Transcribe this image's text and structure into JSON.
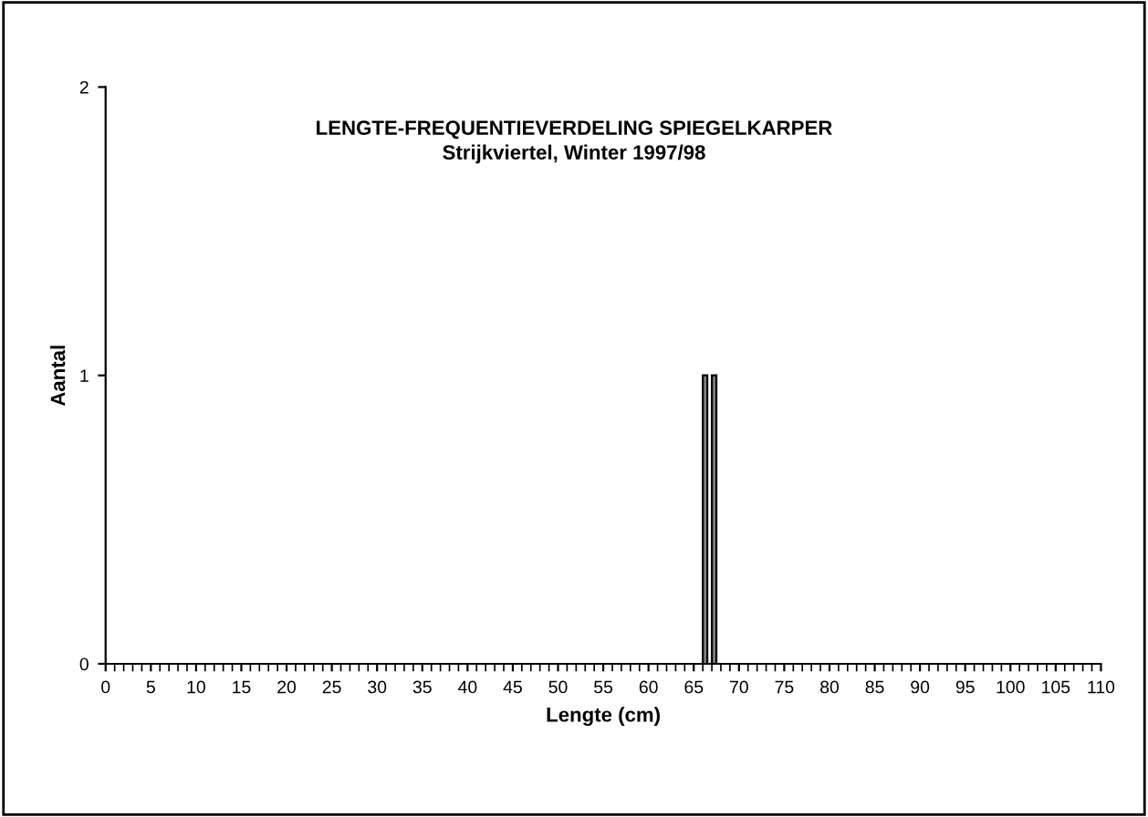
{
  "chart_data": {
    "type": "bar",
    "title": "LENGTE-FREQUENTIEVERDELING SPIEGELKARPER",
    "subtitle": "Strijkviertel, Winter 1997/98",
    "xlabel": "Lengte (cm)",
    "ylabel": "Aantal",
    "x": [
      66,
      67
    ],
    "values": [
      1,
      1
    ],
    "color": "#808080",
    "xlim": [
      0,
      110
    ],
    "xticks": [
      0,
      5,
      10,
      15,
      20,
      25,
      30,
      35,
      40,
      45,
      50,
      55,
      60,
      65,
      70,
      75,
      80,
      85,
      90,
      95,
      100,
      105,
      110
    ],
    "ylim": [
      0,
      2
    ],
    "yticks": [
      0,
      1,
      2
    ],
    "grid": false,
    "legend": false
  }
}
